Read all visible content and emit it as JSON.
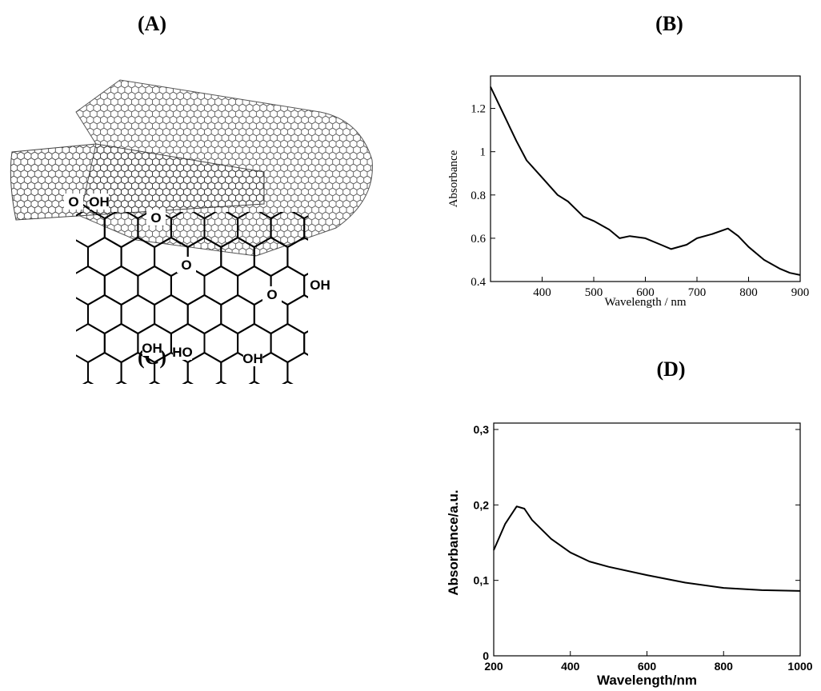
{
  "figures": [
    {
      "label": "(A)"
    },
    {
      "label": "(C)",
      "groups": [
        "O",
        "OH",
        "O",
        "O",
        "OH",
        "O",
        "OH",
        "HO",
        "OH"
      ]
    }
  ],
  "chart_data": [
    {
      "type": "line",
      "title": "(B)",
      "x_label": "Wavelength / nm",
      "y_label": "Absorbance",
      "x": [
        300,
        320,
        350,
        370,
        400,
        430,
        450,
        480,
        500,
        530,
        550,
        570,
        600,
        630,
        650,
        680,
        700,
        730,
        760,
        780,
        800,
        830,
        860,
        880,
        900
      ],
      "series": [
        {
          "color": "#000000",
          "values": [
            1.3,
            1.2,
            1.05,
            0.96,
            0.88,
            0.8,
            0.77,
            0.7,
            0.68,
            0.64,
            0.6,
            0.61,
            0.6,
            0.57,
            0.55,
            0.57,
            0.6,
            0.62,
            0.645,
            0.61,
            0.56,
            0.5,
            0.46,
            0.44,
            0.43
          ]
        }
      ],
      "xlim": [
        300,
        900
      ],
      "xticks": [
        400,
        500,
        600,
        700,
        800,
        900
      ],
      "ylim": [
        0.4,
        1.35
      ],
      "yticks": [
        0.4,
        0.6,
        0.8,
        1.0,
        1.2
      ]
    },
    {
      "type": "line",
      "title": "(D)",
      "x_label": "Wavelength/nm",
      "y_label": "Absorbance/a.u.",
      "x": [
        200,
        230,
        260,
        280,
        300,
        350,
        400,
        450,
        500,
        600,
        700,
        800,
        900,
        1000
      ],
      "series": [
        {
          "color": "#000000",
          "values": [
            0.14,
            0.175,
            0.198,
            0.195,
            0.18,
            0.155,
            0.137,
            0.125,
            0.118,
            0.107,
            0.097,
            0.09,
            0.087,
            0.086
          ]
        }
      ],
      "xlim": [
        200,
        1000
      ],
      "xticks": [
        200,
        400,
        600,
        800,
        1000
      ],
      "ylim": [
        0,
        0.3
      ],
      "yticks": [
        0,
        {
          "value": 0.1,
          "label": "0,1"
        },
        {
          "value": 0.2,
          "label": "0,2"
        },
        {
          "value": 0.3,
          "label": "0,3"
        }
      ]
    }
  ]
}
